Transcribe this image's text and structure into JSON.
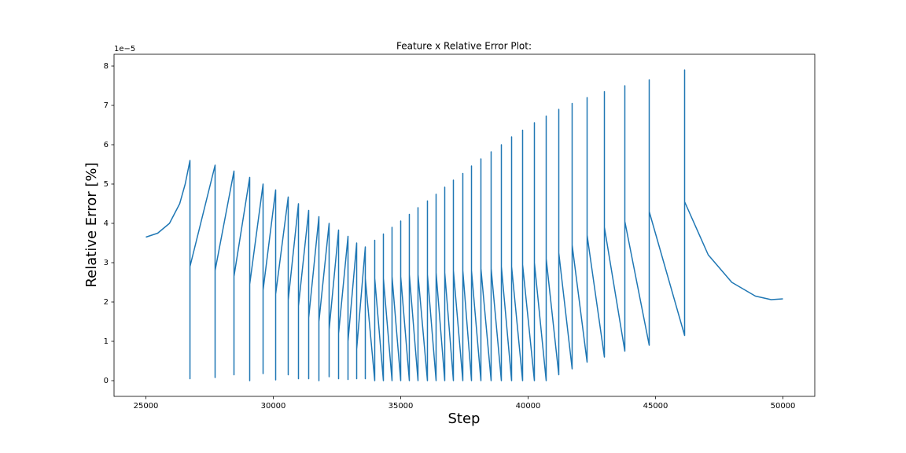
{
  "chart_data": {
    "type": "line",
    "title": "Feature x Relative Error Plot:",
    "x_label": "Step",
    "y_label": "Relative Error [%]",
    "y_offset_label": "1e−5",
    "color": "#1f77b4",
    "grid": false,
    "xlim": [
      23750,
      51250
    ],
    "ylim": [
      -0.4,
      8.3
    ],
    "xticks": [
      25000,
      30000,
      35000,
      40000,
      45000,
      50000
    ],
    "yticks": [
      0,
      1,
      2,
      3,
      4,
      5,
      6,
      7,
      8
    ],
    "x": [
      25000,
      25463,
      25926,
      26327,
      26543,
      26730,
      26730,
      26730,
      27716,
      27716,
      27716,
      28457,
      28457,
      28457,
      29074,
      29074,
      29074,
      29599,
      29599,
      29599,
      30093,
      30093,
      30093,
      30586,
      30586,
      30586,
      30988,
      30988,
      30988,
      31389,
      31389,
      31389,
      31790,
      31790,
      31790,
      32191,
      32191,
      32191,
      32562,
      32562,
      32562,
      32932,
      32932,
      32932,
      33272,
      33272,
      33272,
      33611,
      33611,
      33611,
      33981,
      33981,
      33981,
      34321,
      34321,
      34321,
      34660,
      34660,
      34660,
      35000,
      35000,
      35000,
      35339,
      35339,
      35339,
      35679,
      35679,
      35679,
      36049,
      36049,
      36049,
      36389,
      36389,
      36389,
      36728,
      36728,
      36728,
      37068,
      37068,
      37068,
      37438,
      37438,
      37438,
      37778,
      37778,
      37778,
      38148,
      38148,
      38148,
      38549,
      38549,
      38549,
      38951,
      38951,
      38951,
      39352,
      39352,
      39352,
      39784,
      39784,
      39784,
      40247,
      40247,
      40247,
      40710,
      40710,
      40710,
      41204,
      41204,
      41204,
      41728,
      41728,
      41728,
      42315,
      42315,
      42315,
      42994,
      42994,
      42994,
      43796,
      43796,
      43796,
      44753,
      44753,
      44753,
      46142,
      46142,
      46142,
      47068,
      47994,
      48920,
      49537,
      50000
    ],
    "values": [
      3.65,
      3.75,
      4.0,
      4.5,
      5.0,
      5.6,
      0.05,
      2.9,
      5.48,
      0.08,
      2.8,
      5.33,
      0.15,
      2.65,
      5.17,
      0.0,
      2.45,
      5.0,
      0.18,
      2.3,
      4.85,
      0.02,
      2.2,
      4.67,
      0.15,
      2.05,
      4.5,
      0.05,
      1.9,
      4.33,
      0.05,
      1.6,
      4.17,
      0.0,
      1.5,
      4.0,
      0.1,
      1.3,
      3.83,
      0.05,
      1.2,
      3.67,
      0.03,
      1.0,
      3.5,
      0.05,
      0.8,
      3.4,
      0.05,
      2.6,
      0.0,
      3.57,
      2.6,
      0.0,
      3.73,
      2.6,
      0.0,
      3.9,
      2.65,
      0.0,
      4.06,
      2.65,
      0.0,
      4.23,
      2.7,
      0.0,
      4.4,
      2.7,
      0.0,
      4.57,
      2.7,
      0.0,
      4.74,
      2.75,
      0.0,
      4.92,
      2.75,
      0.0,
      5.1,
      2.8,
      0.0,
      5.27,
      2.8,
      0.0,
      5.46,
      2.8,
      0.0,
      5.64,
      2.85,
      0.0,
      5.82,
      2.85,
      0.0,
      6.0,
      2.9,
      0.0,
      6.2,
      2.9,
      0.0,
      6.37,
      2.95,
      0.0,
      6.56,
      3.0,
      0.0,
      6.73,
      3.1,
      0.15,
      6.9,
      3.25,
      0.3,
      7.05,
      3.45,
      0.47,
      7.2,
      3.7,
      0.6,
      7.35,
      3.9,
      0.75,
      7.5,
      4.05,
      0.9,
      7.65,
      4.3,
      1.15,
      7.9,
      4.55,
      3.2,
      2.5,
      2.15,
      2.06,
      2.08
    ]
  }
}
